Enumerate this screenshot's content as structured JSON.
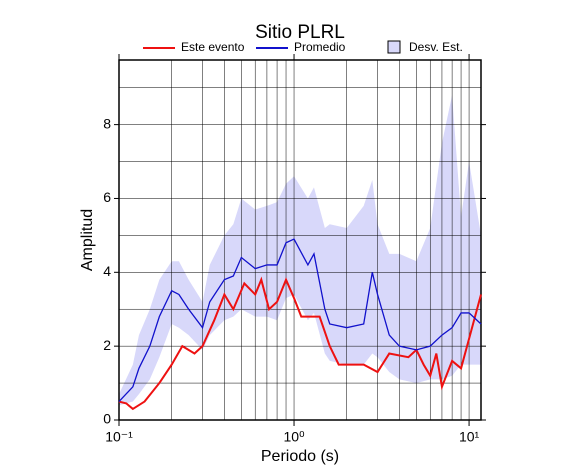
{
  "chart_data": {
    "type": "line",
    "title": "Sitio PLRL",
    "xlabel": "Periodo (s)",
    "ylabel": "Amplitud",
    "xscale": "log",
    "xlim": [
      0.1,
      11.7
    ],
    "ylim": [
      0,
      9.75
    ],
    "xticks": [
      {
        "value": 0.1,
        "label": "10⁻¹"
      },
      {
        "value": 1,
        "label": "10⁰"
      },
      {
        "value": 10,
        "label": "10¹"
      }
    ],
    "yticks": [
      0,
      2,
      4,
      6,
      8
    ],
    "xgrid": [
      0.1,
      0.2,
      0.3,
      0.4,
      0.5,
      0.6,
      0.7,
      0.8,
      0.9,
      1,
      2,
      3,
      4,
      5,
      6,
      7,
      8,
      9,
      10
    ],
    "ygrid": [
      1,
      2,
      3,
      4,
      5,
      6,
      7,
      8,
      9
    ],
    "grid": true,
    "legend": "top",
    "series": [
      {
        "name": "Este evento",
        "color": "#ee1111",
        "x": [
          0.1,
          0.11,
          0.12,
          0.14,
          0.17,
          0.2,
          0.23,
          0.27,
          0.3,
          0.35,
          0.4,
          0.45,
          0.52,
          0.6,
          0.65,
          0.72,
          0.8,
          0.9,
          1.0,
          1.1,
          1.4,
          1.6,
          1.8,
          2.5,
          3.0,
          3.5,
          4.5,
          5.0,
          5.5,
          6.0,
          6.5,
          7.0,
          8.0,
          9.0,
          10.0,
          11.7
        ],
        "values": [
          0.5,
          0.45,
          0.3,
          0.5,
          1.0,
          1.5,
          2.0,
          1.8,
          2.0,
          2.7,
          3.4,
          3.0,
          3.7,
          3.4,
          3.8,
          3.0,
          3.2,
          3.8,
          3.3,
          2.8,
          2.8,
          2.0,
          1.5,
          1.5,
          1.3,
          1.8,
          1.7,
          1.9,
          1.5,
          1.2,
          1.8,
          0.9,
          1.6,
          1.4,
          2.2,
          3.4
        ]
      },
      {
        "name": "Promedio",
        "color": "#1111cc",
        "x": [
          0.1,
          0.12,
          0.13,
          0.15,
          0.17,
          0.2,
          0.22,
          0.25,
          0.3,
          0.33,
          0.4,
          0.45,
          0.5,
          0.6,
          0.7,
          0.8,
          0.9,
          1.0,
          1.2,
          1.3,
          1.5,
          1.6,
          2.0,
          2.5,
          2.8,
          3.0,
          3.5,
          4.0,
          5.0,
          6.0,
          7.0,
          8.0,
          9.0,
          10.0,
          11.7
        ],
        "values": [
          0.5,
          0.9,
          1.4,
          2.0,
          2.8,
          3.5,
          3.4,
          3.0,
          2.5,
          3.2,
          3.8,
          3.9,
          4.4,
          4.1,
          4.2,
          4.2,
          4.8,
          4.9,
          4.2,
          4.5,
          3.0,
          2.6,
          2.5,
          2.6,
          4.0,
          3.4,
          2.3,
          2.0,
          1.9,
          2.0,
          2.3,
          2.5,
          2.9,
          2.9,
          2.6
        ]
      },
      {
        "name": "Desv. Est.",
        "color": "#d8d8fa",
        "x": [
          0.1,
          0.12,
          0.13,
          0.15,
          0.17,
          0.2,
          0.22,
          0.25,
          0.3,
          0.33,
          0.4,
          0.45,
          0.5,
          0.6,
          0.7,
          0.8,
          0.9,
          1.0,
          1.2,
          1.3,
          1.5,
          1.6,
          2.0,
          2.5,
          2.8,
          3.0,
          3.5,
          4.0,
          5.0,
          6.0,
          7.0,
          8.0,
          9.0,
          10.0,
          11.7
        ],
        "upper": [
          0.7,
          1.5,
          2.3,
          3.0,
          3.8,
          4.3,
          4.3,
          3.8,
          3.2,
          4.2,
          5.0,
          5.3,
          6.0,
          5.7,
          5.8,
          5.9,
          6.4,
          6.6,
          6.0,
          6.3,
          5.2,
          5.3,
          5.2,
          5.8,
          6.5,
          5.3,
          4.5,
          4.5,
          4.3,
          5.2,
          7.5,
          8.8,
          5.5,
          7.0,
          5.0
        ],
        "lower": [
          0.4,
          0.5,
          0.7,
          1.1,
          1.7,
          2.6,
          2.5,
          2.3,
          1.9,
          2.3,
          2.7,
          2.8,
          3.0,
          2.8,
          2.8,
          2.7,
          3.3,
          3.4,
          2.7,
          2.9,
          1.8,
          1.6,
          1.5,
          1.5,
          1.8,
          1.7,
          1.3,
          1.1,
          1.0,
          1.1,
          1.1,
          1.2,
          1.5,
          1.5,
          1.5
        ]
      }
    ]
  }
}
